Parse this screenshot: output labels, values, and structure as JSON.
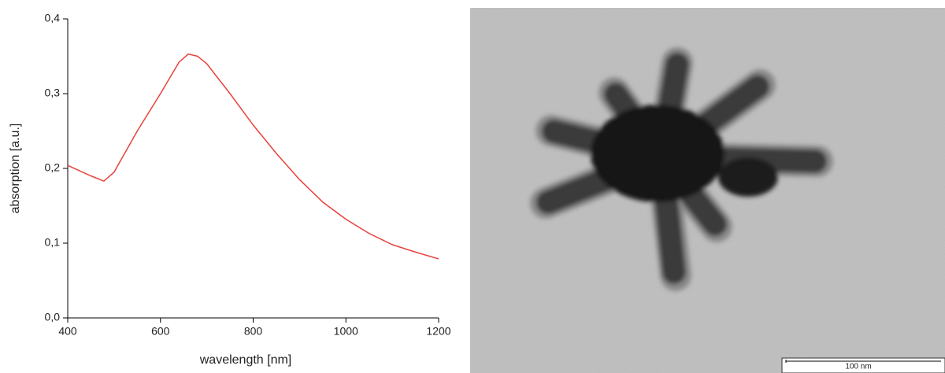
{
  "chart_data": {
    "type": "line",
    "x_label": "wavelength [nm]",
    "y_label": "absorption [a.u.]",
    "x": [
      400,
      450,
      478,
      500,
      550,
      600,
      640,
      660,
      680,
      700,
      750,
      800,
      850,
      900,
      950,
      1000,
      1050,
      1100,
      1150,
      1200
    ],
    "series": [
      {
        "color": "#e8413c",
        "values": [
          0.204,
          0.19,
          0.183,
          0.195,
          0.25,
          0.3,
          0.342,
          0.353,
          0.35,
          0.34,
          0.3,
          0.258,
          0.22,
          0.185,
          0.155,
          0.132,
          0.113,
          0.098,
          0.088,
          0.079
        ]
      }
    ],
    "xlim": [
      400,
      1200
    ],
    "xticks": [
      400,
      600,
      800,
      1000,
      1200
    ],
    "ylim": [
      0,
      0.4
    ],
    "yticks": [
      {
        "value": 0,
        "label": "0,0"
      },
      {
        "value": 0.1,
        "label": "0,1"
      },
      {
        "value": 0.2,
        "label": "0,2"
      },
      {
        "value": 0.3,
        "label": "0,3"
      },
      {
        "value": 0.4,
        "label": "0,4"
      }
    ],
    "grid": false
  },
  "micrograph": {
    "scale_label": "100 nm"
  }
}
